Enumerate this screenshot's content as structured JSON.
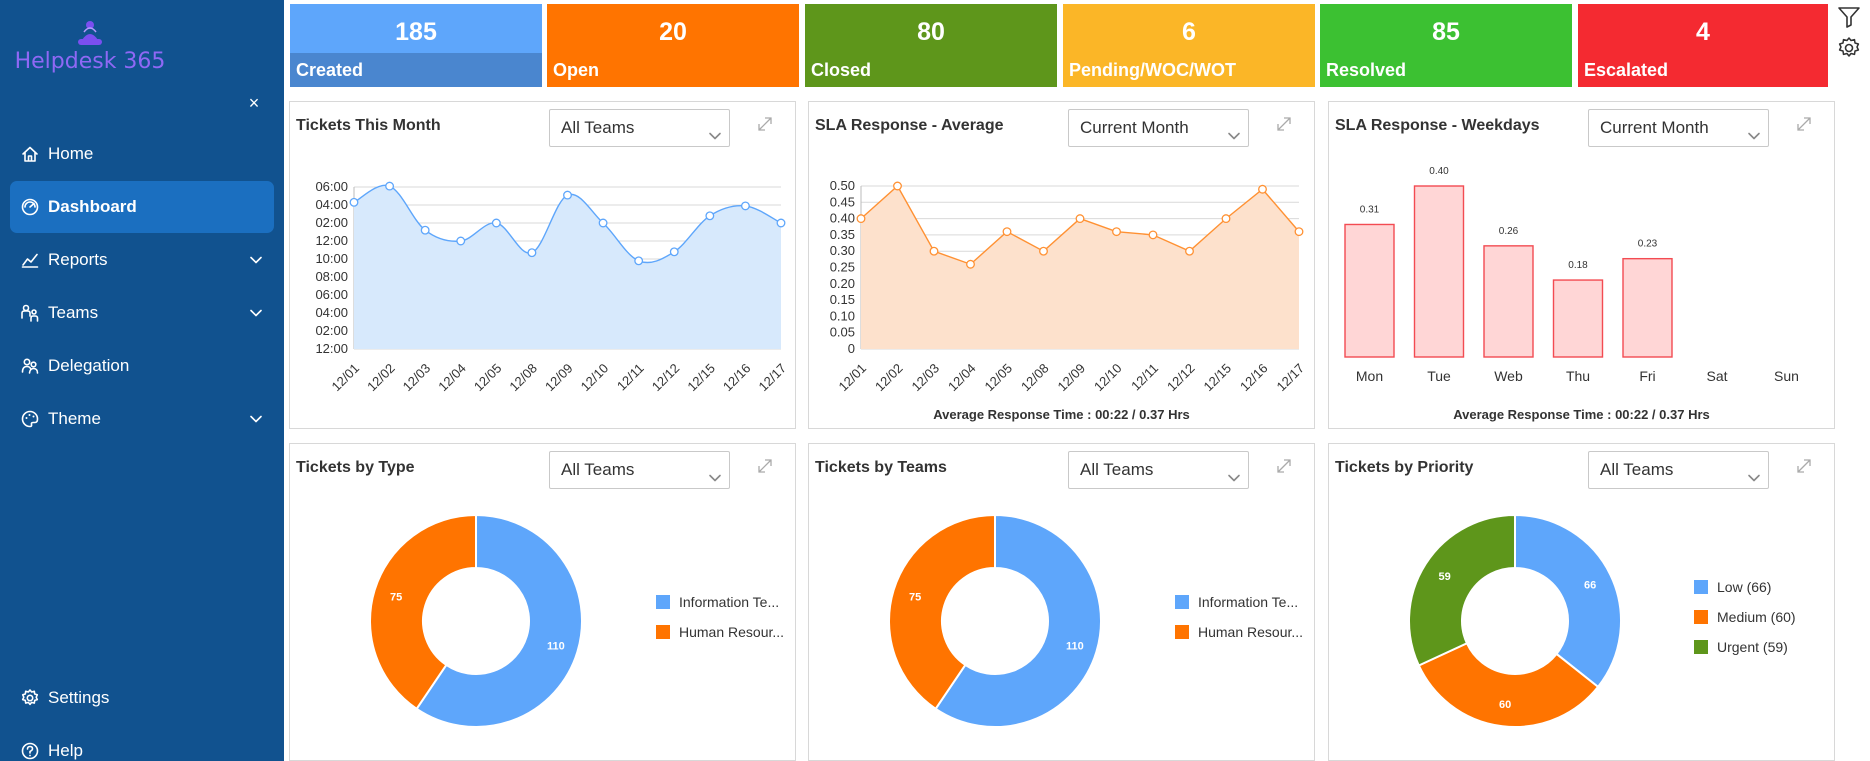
{
  "app": {
    "name": "Helpdesk 365"
  },
  "sidebar": {
    "items": [
      {
        "label": "Home",
        "icon": "home-icon",
        "active": false,
        "chevron": false
      },
      {
        "label": "Dashboard",
        "icon": "dashboard-icon",
        "active": true,
        "chevron": false
      },
      {
        "label": "Reports",
        "icon": "reports-icon",
        "active": false,
        "chevron": true
      },
      {
        "label": "Teams",
        "icon": "teams-icon",
        "active": false,
        "chevron": true
      },
      {
        "label": "Delegation",
        "icon": "delegation-icon",
        "active": false,
        "chevron": false
      },
      {
        "label": "Theme",
        "icon": "theme-icon",
        "active": false,
        "chevron": true
      }
    ],
    "bottom": [
      {
        "label": "Settings",
        "icon": "settings-icon"
      },
      {
        "label": "Help",
        "icon": "help-icon"
      }
    ]
  },
  "kpis": [
    {
      "value": "185",
      "label": "Created",
      "color": "#5ea6fb",
      "foot": "#4a86cf"
    },
    {
      "value": "20",
      "label": "Open",
      "color": "#ff7400",
      "foot": "#ff7400"
    },
    {
      "value": "80",
      "label": "Closed",
      "color": "#5e961b",
      "foot": "#5e961b"
    },
    {
      "value": "6",
      "label": "Pending/WOC/WOT",
      "color": "#fbb627",
      "foot": "#fbb627"
    },
    {
      "value": "85",
      "label": "Resolved",
      "color": "#3cc132",
      "foot": "#3cc132"
    },
    {
      "value": "4",
      "label": "Escalated",
      "color": "#f42a31",
      "foot": "#f42a31"
    }
  ],
  "cards": [
    {
      "title": "Tickets This Month",
      "select": "All Teams",
      "footer": "",
      "chart_data": {
        "type": "area",
        "x": [
          "12/01",
          "12/02",
          "12/03",
          "12/04",
          "12/05",
          "12/08",
          "12/09",
          "12/10",
          "12/11",
          "12/12",
          "12/15",
          "12/16",
          "12/17"
        ],
        "yticks": [
          "06:00",
          "04:00",
          "02:00",
          "12:00",
          "10:00",
          "08:00",
          "06:00",
          "04:00",
          "02:00",
          "12:00"
        ],
        "y_hours_from_bottom": [
          16.3,
          18.1,
          13.2,
          12.0,
          14.0,
          10.7,
          17.1,
          14.0,
          9.8,
          10.8,
          14.8,
          15.9,
          14.0
        ],
        "color": "#5ea6fb",
        "fill": "#d7e9fc"
      }
    },
    {
      "title": "SLA Response - Average",
      "select": "Current Month",
      "footer": "Average Response Time : 00:22 / 0.37 Hrs",
      "chart_data": {
        "type": "area",
        "x": [
          "12/01",
          "12/02",
          "12/03",
          "12/04",
          "12/05",
          "12/08",
          "12/09",
          "12/10",
          "12/11",
          "12/12",
          "12/15",
          "12/16",
          "12/17"
        ],
        "yticks": [
          "0.50",
          "0.45",
          "0.40",
          "0.35",
          "0.30",
          "0.25",
          "0.20",
          "0.15",
          "0.10",
          "0.05",
          "0"
        ],
        "ylim": [
          0,
          0.5
        ],
        "values": [
          0.4,
          0.5,
          0.3,
          0.26,
          0.36,
          0.3,
          0.4,
          0.36,
          0.35,
          0.3,
          0.4,
          0.49,
          0.36
        ],
        "color": "#ff9133",
        "fill": "#fde1cc"
      }
    },
    {
      "title": "SLA Response - Weekdays",
      "select": "Current Month",
      "footer": "Average Response Time : 00:22 / 0.37 Hrs",
      "chart_data": {
        "type": "bar",
        "categories": [
          "Mon",
          "Tue",
          "Web",
          "Thu",
          "Fri",
          "Sat",
          "Sun"
        ],
        "values": [
          0.31,
          0.4,
          0.26,
          0.18,
          0.23,
          null,
          null
        ],
        "labels": [
          "0.31",
          "0.40",
          "0.26",
          "0.18",
          "0.23",
          "",
          ""
        ],
        "ylim": [
          0,
          0.4
        ],
        "color": "#ffd6d6",
        "stroke": "#f34b52"
      }
    },
    {
      "title": "Tickets by Type",
      "select": "All Teams",
      "footer": "",
      "chart_data": {
        "type": "pie",
        "slices": [
          {
            "name": "Information Te...",
            "value": 110,
            "label": "110",
            "color": "#5ea6fb"
          },
          {
            "name": "Human Resour...",
            "value": 75,
            "label": "75",
            "color": "#ff7400"
          }
        ]
      }
    },
    {
      "title": "Tickets by Teams",
      "select": "All Teams",
      "footer": "",
      "chart_data": {
        "type": "pie",
        "slices": [
          {
            "name": "Information Te...",
            "value": 110,
            "label": "110",
            "color": "#5ea6fb"
          },
          {
            "name": "Human Resour...",
            "value": 75,
            "label": "75",
            "color": "#ff7400"
          }
        ]
      }
    },
    {
      "title": "Tickets by Priority",
      "select": "All Teams",
      "footer": "",
      "chart_data": {
        "type": "pie",
        "slices": [
          {
            "name": "Low (66)",
            "value": 66,
            "label": "66",
            "color": "#5ea6fb"
          },
          {
            "name": "Medium (60)",
            "value": 60,
            "label": "60",
            "color": "#ff7400"
          },
          {
            "name": "Urgent (59)",
            "value": 59,
            "label": "59",
            "color": "#5e961b"
          }
        ]
      }
    }
  ]
}
